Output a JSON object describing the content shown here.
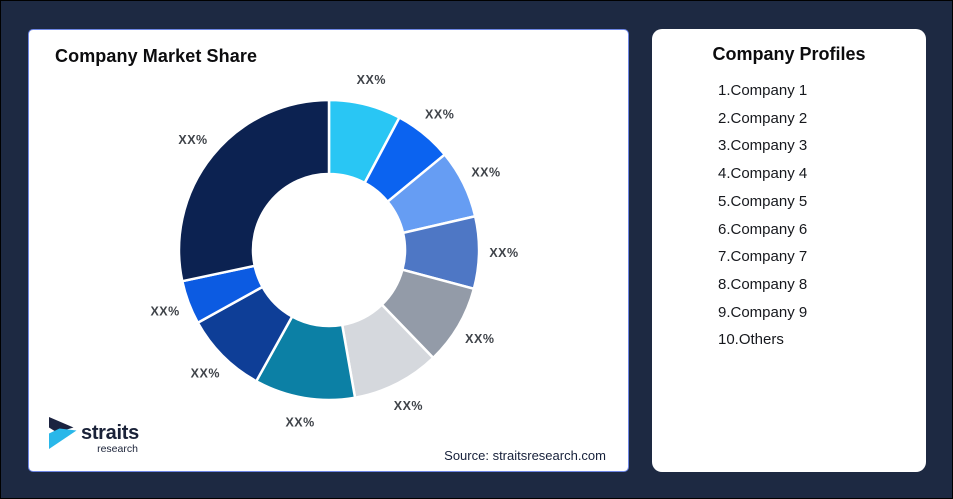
{
  "frame": {
    "background_color": "#1D2942"
  },
  "chart_card": {
    "title": "Company Market Share",
    "source": "Source: straitsresearch.com",
    "border_color": "#6E86E4",
    "logo": {
      "name": "straits",
      "sub": "research",
      "navy_color": "#1B2340",
      "cyan_color": "#29B7E9"
    }
  },
  "profiles_card": {
    "title": "Company Profiles",
    "items": [
      "1.Company 1",
      "2.Company 2",
      "3.Company 3",
      "4.Company 4",
      "5.Company 5",
      "6.Company 6",
      "7.Company 7",
      "8.Company 8",
      "9.Company 9",
      "10.Others"
    ]
  },
  "chart_data": {
    "type": "pie",
    "subtype": "donut",
    "title": "Company Market Share",
    "categories": [
      "Company 1",
      "Company 2",
      "Company 3",
      "Company 4",
      "Company 5",
      "Company 6",
      "Company 7",
      "Company 8",
      "Company 9",
      "Others"
    ],
    "labels": [
      "XX%",
      "XX%",
      "XX%",
      "XX%",
      "XX%",
      "XX%",
      "XX%",
      "XX%",
      "XX%",
      "XX%"
    ],
    "values_masked": true,
    "angles_deg": [
      28,
      22.5,
      26.5,
      28,
      31,
      34,
      39,
      32,
      17,
      102
    ],
    "colors": [
      "#29C6F4",
      "#0B63F0",
      "#669DF3",
      "#4E77C5",
      "#939BA8",
      "#D5D8DD",
      "#0C80A5",
      "#0E3E97",
      "#0C5BE2",
      "#0C2251"
    ],
    "outer_radius": 150,
    "inner_radius": 76,
    "label_radius": 175,
    "separator_color": "#ffffff",
    "label_color": "#3F4349",
    "legend_position": "none",
    "start_angle_deg": 0,
    "direction": "clockwise"
  }
}
